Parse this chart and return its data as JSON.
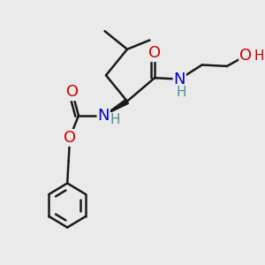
{
  "bg_color": "#eaeaea",
  "bond_color": "#1a1a1a",
  "bond_width": 1.8,
  "atom_colors": {
    "O": "#cc0000",
    "N": "#0000cc",
    "H_teal": "#4a9090",
    "H_red": "#cc0000"
  },
  "font_size_atom": 13,
  "font_size_H": 11,
  "xlim": [
    0,
    10
  ],
  "ylim": [
    0,
    10
  ]
}
